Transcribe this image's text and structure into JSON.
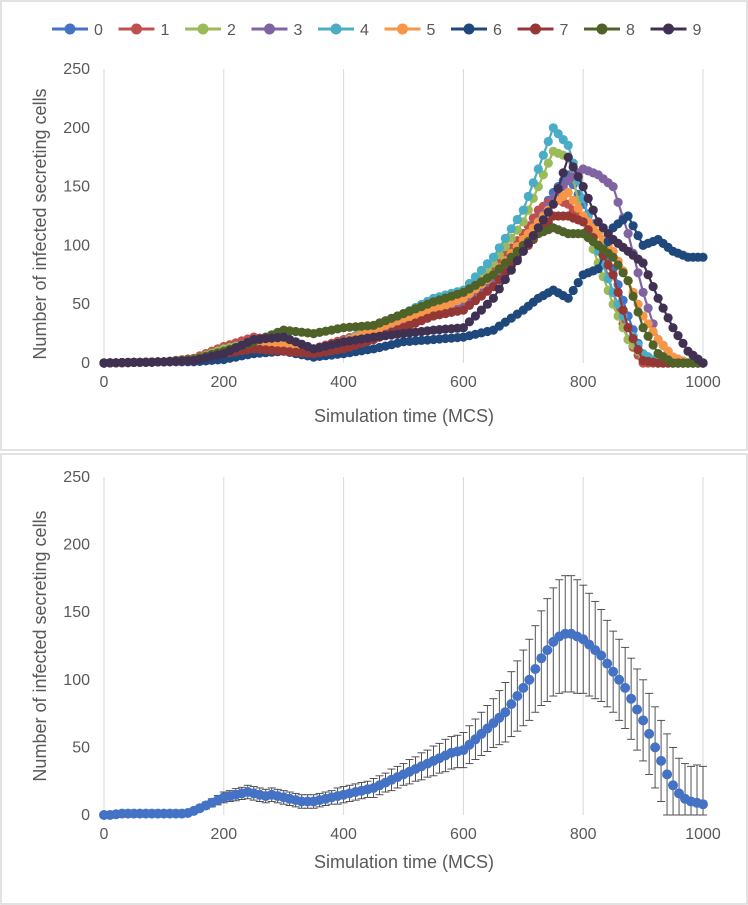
{
  "chart_data": [
    {
      "type": "line",
      "panel": "top",
      "xlabel": "Simulation time (MCS)",
      "ylabel": "Number of infected secreting cells",
      "xlim": [
        0,
        1000
      ],
      "ylim": [
        0,
        250
      ],
      "xticks": [
        0,
        200,
        400,
        600,
        800,
        1000
      ],
      "yticks": [
        0,
        50,
        100,
        150,
        200,
        250
      ],
      "grid": "vertical",
      "legend": "top",
      "x": [
        0,
        100,
        150,
        200,
        250,
        300,
        350,
        400,
        450,
        500,
        550,
        600,
        650,
        700,
        725,
        750,
        775,
        800,
        825,
        850,
        875,
        900,
        925,
        950,
        975,
        1000
      ],
      "series": [
        {
          "name": "0",
          "color": "#4472c4",
          "values": [
            0,
            1,
            3,
            10,
            14,
            15,
            12,
            15,
            22,
            35,
            45,
            55,
            75,
            105,
            125,
            145,
            160,
            135,
            110,
            80,
            40,
            5,
            0,
            0,
            0,
            0
          ]
        },
        {
          "name": "1",
          "color": "#c0504d",
          "values": [
            0,
            1,
            4,
            14,
            22,
            18,
            12,
            20,
            28,
            40,
            50,
            60,
            80,
            110,
            130,
            140,
            135,
            120,
            100,
            60,
            20,
            0,
            0,
            0,
            0,
            0
          ]
        },
        {
          "name": "2",
          "color": "#9bbb59",
          "values": [
            0,
            1,
            3,
            12,
            18,
            20,
            10,
            18,
            30,
            40,
            50,
            60,
            85,
            120,
            150,
            180,
            175,
            120,
            85,
            50,
            20,
            5,
            0,
            0,
            0,
            0
          ]
        },
        {
          "name": "3",
          "color": "#8064a2",
          "values": [
            0,
            1,
            2,
            8,
            15,
            18,
            10,
            15,
            25,
            35,
            45,
            50,
            70,
            100,
            120,
            140,
            155,
            165,
            160,
            150,
            110,
            60,
            20,
            5,
            0,
            0
          ]
        },
        {
          "name": "4",
          "color": "#4bacc6",
          "values": [
            0,
            1,
            3,
            10,
            15,
            18,
            10,
            18,
            30,
            42,
            55,
            62,
            90,
            130,
            165,
            200,
            185,
            140,
            95,
            60,
            30,
            8,
            0,
            0,
            0,
            0
          ]
        },
        {
          "name": "5",
          "color": "#f79646",
          "values": [
            0,
            1,
            3,
            10,
            18,
            15,
            12,
            18,
            28,
            38,
            45,
            55,
            75,
            105,
            120,
            135,
            145,
            125,
            110,
            95,
            70,
            40,
            20,
            5,
            0,
            0
          ]
        },
        {
          "name": "6",
          "color": "#1f497d",
          "values": [
            0,
            1,
            1,
            3,
            8,
            10,
            5,
            8,
            12,
            18,
            20,
            22,
            28,
            45,
            55,
            62,
            55,
            75,
            80,
            115,
            125,
            100,
            105,
            95,
            90,
            90
          ]
        },
        {
          "name": "7",
          "color": "#953735",
          "values": [
            0,
            1,
            2,
            8,
            12,
            10,
            8,
            12,
            20,
            30,
            40,
            45,
            65,
            95,
            110,
            125,
            125,
            120,
            100,
            75,
            30,
            2,
            0,
            0,
            0,
            0
          ]
        },
        {
          "name": "8",
          "color": "#4f6228",
          "values": [
            0,
            1,
            3,
            10,
            18,
            28,
            25,
            30,
            32,
            42,
            52,
            60,
            75,
            100,
            110,
            115,
            110,
            110,
            100,
            90,
            70,
            30,
            8,
            0,
            0,
            0
          ]
        },
        {
          "name": "9",
          "color": "#403152",
          "values": [
            0,
            1,
            2,
            8,
            20,
            22,
            12,
            18,
            22,
            25,
            28,
            30,
            55,
            95,
            115,
            135,
            175,
            150,
            120,
            105,
            95,
            85,
            55,
            30,
            10,
            0
          ]
        }
      ]
    },
    {
      "type": "scatter",
      "panel": "bottom",
      "xlabel": "Simulation time (MCS)",
      "ylabel": "Number of infected secreting cells",
      "xlim": [
        0,
        1000
      ],
      "ylim": [
        0,
        250
      ],
      "xticks": [
        0,
        200,
        400,
        600,
        800,
        1000
      ],
      "yticks": [
        0,
        50,
        100,
        150,
        200,
        250
      ],
      "grid": "vertical",
      "error_bars": true,
      "series": [
        {
          "color": "#4472c4",
          "x": [
            0,
            10,
            20,
            30,
            40,
            50,
            60,
            70,
            80,
            90,
            100,
            110,
            120,
            130,
            140,
            150,
            160,
            170,
            180,
            190,
            200,
            210,
            220,
            230,
            240,
            250,
            260,
            270,
            280,
            290,
            300,
            310,
            320,
            330,
            340,
            350,
            360,
            370,
            380,
            390,
            400,
            410,
            420,
            430,
            440,
            450,
            460,
            470,
            480,
            490,
            500,
            510,
            520,
            530,
            540,
            550,
            560,
            570,
            580,
            590,
            600,
            610,
            620,
            630,
            640,
            650,
            660,
            670,
            680,
            690,
            700,
            710,
            720,
            730,
            740,
            750,
            760,
            770,
            780,
            790,
            800,
            810,
            820,
            830,
            840,
            850,
            860,
            870,
            880,
            890,
            900,
            910,
            920,
            930,
            940,
            950,
            960,
            970,
            980,
            990,
            1000
          ],
          "values": [
            0,
            0,
            0.5,
            1,
            1,
            1,
            1,
            1,
            1,
            1,
            1,
            1,
            1,
            1,
            1.5,
            3,
            5,
            7,
            9,
            11,
            13,
            14,
            15,
            16,
            17,
            16,
            15,
            14,
            15,
            14,
            13,
            12,
            11,
            10,
            10,
            10,
            11,
            12,
            13,
            14,
            15,
            16,
            17,
            18,
            19,
            20,
            22,
            24,
            26,
            28,
            30,
            32,
            34,
            36,
            38,
            40,
            42,
            44,
            46,
            47,
            48,
            52,
            56,
            60,
            64,
            68,
            72,
            76,
            82,
            88,
            94,
            100,
            108,
            116,
            122,
            128,
            132,
            134,
            134,
            132,
            130,
            126,
            122,
            118,
            112,
            106,
            100,
            94,
            86,
            78,
            70,
            60,
            50,
            40,
            30,
            22,
            16,
            12,
            10,
            9,
            8
          ],
          "errors": [
            0,
            0,
            0.5,
            0.5,
            0.5,
            0.5,
            0.5,
            0.5,
            0.5,
            0.5,
            0.5,
            0.5,
            0.5,
            0.5,
            1,
            1.5,
            2,
            2.5,
            3,
            3.5,
            4,
            4,
            4.5,
            4.5,
            5,
            5,
            5,
            5,
            5,
            5,
            5,
            5,
            5,
            5,
            5,
            5,
            5,
            5,
            5,
            6,
            6,
            6,
            6,
            6,
            6,
            7,
            7,
            7,
            8,
            8,
            8,
            9,
            9,
            10,
            10,
            11,
            11,
            12,
            12,
            12,
            13,
            14,
            15,
            16,
            17,
            18,
            20,
            22,
            24,
            26,
            28,
            30,
            32,
            35,
            38,
            40,
            42,
            43,
            43,
            42,
            40,
            38,
            36,
            34,
            32,
            30,
            30,
            30,
            30,
            30,
            30,
            30,
            30,
            30,
            30,
            28,
            26,
            26,
            26,
            28,
            28
          ]
        }
      ]
    }
  ]
}
